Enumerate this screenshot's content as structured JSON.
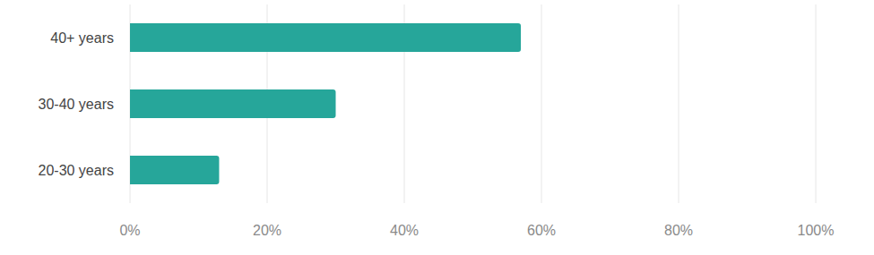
{
  "chart_data": {
    "type": "bar",
    "orientation": "horizontal",
    "categories": [
      "40+ years",
      "30-40 years",
      "20-30 years"
    ],
    "values": [
      57,
      30,
      13
    ],
    "color": "#26a69a",
    "xlim": [
      0,
      100
    ],
    "xticks": [
      {
        "value": 0,
        "label": "0%"
      },
      {
        "value": 20,
        "label": "20%"
      },
      {
        "value": 40,
        "label": "40%"
      },
      {
        "value": 60,
        "label": "60%"
      },
      {
        "value": 80,
        "label": "80%"
      },
      {
        "value": 100,
        "label": "100%"
      }
    ],
    "grid": true
  }
}
